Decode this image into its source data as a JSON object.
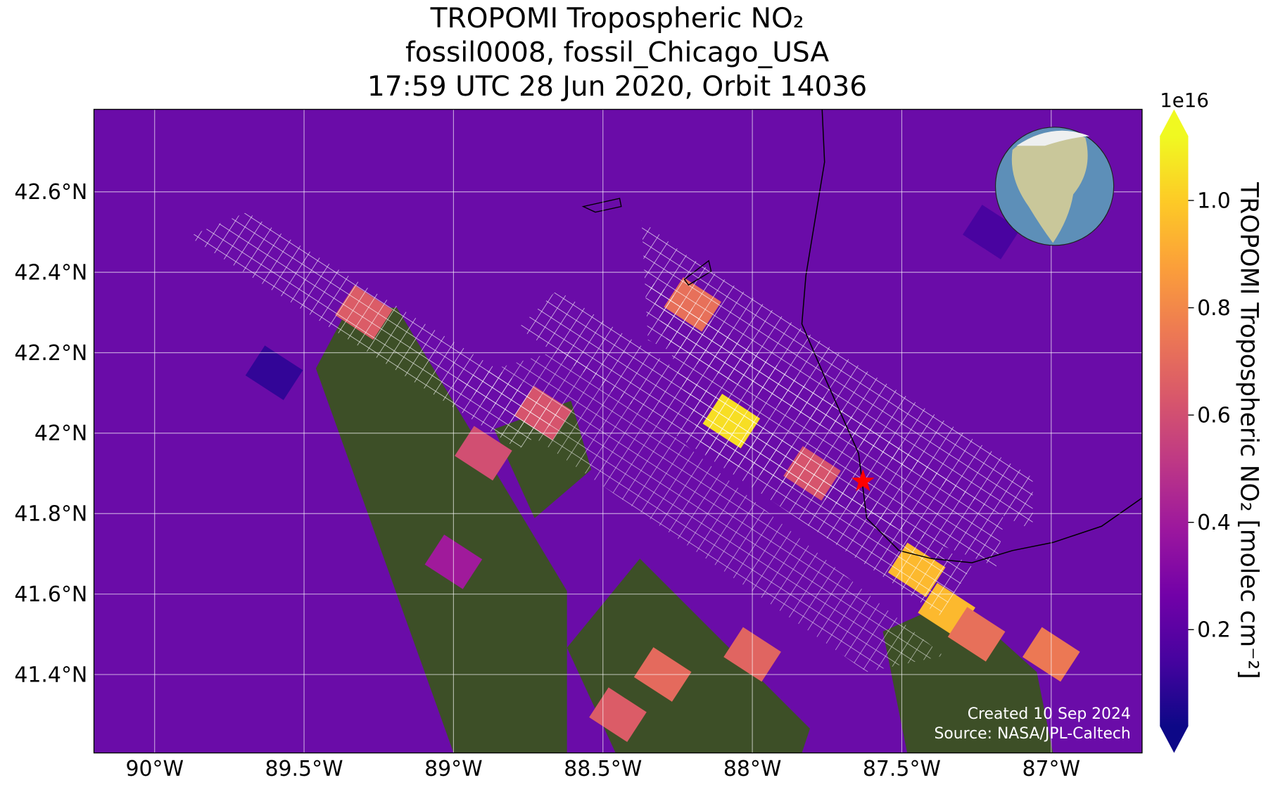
{
  "chart_data": {
    "type": "map",
    "title": [
      "TROPOMI Tropospheric NO₂",
      "fossil0008, fossil_Chicago_USA",
      "17:59 UTC 28 Jun 2020, Orbit 14036"
    ],
    "xlim": [
      -90.203,
      -86.696
    ],
    "ylim": [
      41.205,
      42.805
    ],
    "xticks": [
      {
        "value": -90,
        "label": "90°W"
      },
      {
        "value": -89.5,
        "label": "89.5°W"
      },
      {
        "value": -89,
        "label": "89°W"
      },
      {
        "value": -88.5,
        "label": "88.5°W"
      },
      {
        "value": -88,
        "label": "88°W"
      },
      {
        "value": -87.5,
        "label": "87.5°W"
      },
      {
        "value": -87,
        "label": "87°W"
      }
    ],
    "yticks": [
      {
        "value": 41.4,
        "label": "41.4°N"
      },
      {
        "value": 41.6,
        "label": "41.6°N"
      },
      {
        "value": 41.8,
        "label": "41.8°N"
      },
      {
        "value": 42,
        "label": "42°N"
      },
      {
        "value": 42.2,
        "label": "42.2°N"
      },
      {
        "value": 42.4,
        "label": "42.4°N"
      },
      {
        "value": 42.6,
        "label": "42.6°N"
      }
    ],
    "grid": true,
    "colorbar": {
      "label": "TROPOMI Tropospheric NO₂ [molec cm⁻²]",
      "exponent_label": "1e16",
      "clim": [
        0.02,
        1.12
      ],
      "ticks": [
        0.2,
        0.4,
        0.6,
        0.8,
        {
          "value": 1.0,
          "label": "1.0"
        }
      ],
      "colormap": "plasma"
    },
    "pixels": {
      "lon": [
        -88.07,
        -87.45,
        -87.35,
        -88.2,
        -87.0,
        -88.3,
        -88.0,
        -87.8,
        -88.7,
        -88.9,
        -89.3,
        -88.45,
        -87.25,
        -89.6,
        -89.0,
        -87.2
      ],
      "lat": [
        42.03,
        41.66,
        41.56,
        42.32,
        41.45,
        41.4,
        41.45,
        41.9,
        42.05,
        41.95,
        42.3,
        41.3,
        41.5,
        42.15,
        41.68,
        42.5
      ],
      "values": [
        1.05,
        0.95,
        0.95,
        0.72,
        0.75,
        0.7,
        0.68,
        0.62,
        0.62,
        0.6,
        0.65,
        0.65,
        0.72,
        0.1,
        0.4,
        0.15
      ]
    },
    "site": {
      "lon": -87.63,
      "lat": 41.88,
      "color": "#ff0000"
    },
    "credits": [
      "Created 10 Sep 2024",
      "Source: NASA/JPL-Caltech"
    ]
  }
}
